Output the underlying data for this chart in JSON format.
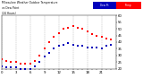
{
  "title_line1": "Milwaukee Weather Outdoor Temperature",
  "title_line2": "vs Dew Point",
  "title_line3": "(24 Hours)",
  "background_color": "#ffffff",
  "grid_color": "#aaaaaa",
  "legend_temp_color": "#ff0000",
  "legend_dew_color": "#0000bb",
  "legend_temp_label": "Temp",
  "legend_dew_label": "Dew Pt",
  "xlim": [
    0,
    24
  ],
  "ylim": [
    20,
    60
  ],
  "yticks": [
    20,
    25,
    30,
    35,
    40,
    45,
    50,
    55,
    60
  ],
  "xticks": [
    0,
    1,
    2,
    3,
    4,
    5,
    6,
    7,
    8,
    9,
    10,
    11,
    12,
    13,
    14,
    15,
    16,
    17,
    18,
    19,
    20,
    21,
    22,
    23
  ],
  "vgrid_positions": [
    0,
    3,
    6,
    9,
    12,
    15,
    18,
    21,
    24
  ],
  "temp_x": [
    0,
    1,
    2,
    3,
    4,
    5,
    6,
    7,
    8,
    9,
    10,
    11,
    12,
    13,
    14,
    15,
    16,
    17,
    18,
    19,
    20,
    21,
    22,
    23
  ],
  "temp_y": [
    27,
    26,
    25,
    25,
    24,
    24,
    24,
    26,
    30,
    35,
    40,
    44,
    47,
    50,
    51,
    52,
    51,
    50,
    48,
    46,
    45,
    44,
    43,
    42
  ],
  "dew_x": [
    0,
    1,
    2,
    3,
    4,
    5,
    6,
    7,
    8,
    9,
    10,
    11,
    12,
    13,
    14,
    15,
    16,
    17,
    18,
    19,
    20,
    21,
    22,
    23
  ],
  "dew_y": [
    22,
    21,
    21,
    21,
    20,
    20,
    20,
    22,
    25,
    29,
    32,
    35,
    37,
    38,
    39,
    38,
    37,
    37,
    36,
    36,
    36,
    35,
    37,
    38
  ]
}
